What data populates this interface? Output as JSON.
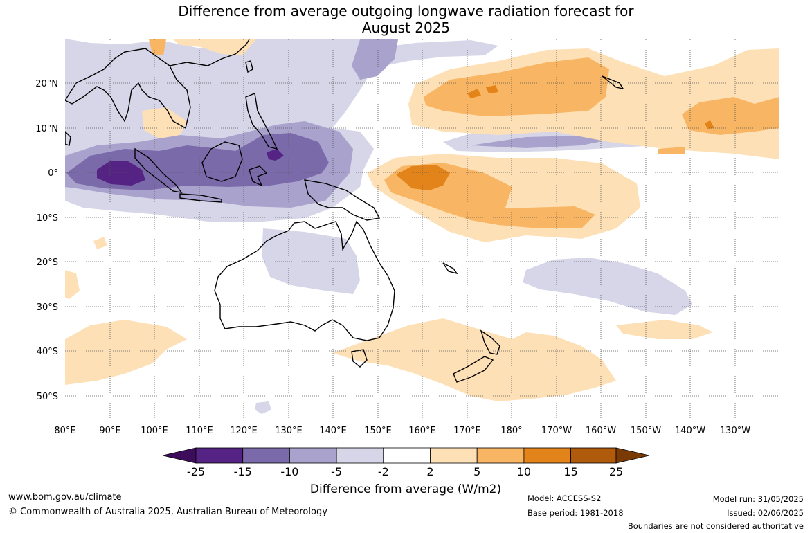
{
  "title_line1": "Difference from average outgoing longwave radiation forecast for",
  "title_line2": "August 2025",
  "map": {
    "lat_labels": [
      "20°N",
      "10°N",
      "0°",
      "10°S",
      "20°S",
      "30°S",
      "40°S",
      "50°S"
    ],
    "lon_labels": [
      "80°E",
      "90°E",
      "100°E",
      "110°E",
      "120°E",
      "130°E",
      "140°E",
      "150°E",
      "160°E",
      "170°E",
      "180°",
      "170°W",
      "160°W",
      "150°W",
      "140°W",
      "130°W"
    ],
    "colors": {
      "purple_dark": "#3d0d5c",
      "purple_1": "#552383",
      "purple_2": "#7a6aaa",
      "purple_3": "#a9a2cc",
      "purple_4": "#d6d6e8",
      "neutral": "#ffffff",
      "orange_1": "#fde0b6",
      "orange_2": "#f8b563",
      "orange_3": "#e3841a",
      "orange_4": "#b05a0c",
      "orange_dark": "#7a3a06"
    }
  },
  "colorbar": {
    "ticks": [
      "-25",
      "-15",
      "-10",
      "-5",
      "-2",
      "2",
      "5",
      "10",
      "15",
      "25"
    ],
    "label": "Difference from average (W/m2)"
  },
  "footer": {
    "website": "www.bom.gov.au/climate",
    "copyright": "© Commonwealth of Australia 2025, Australian Bureau of Meteorology",
    "model": "Model: ACCESS-S2",
    "base_period": "Base period: 1981-2018",
    "model_run": "Model run: 31/05/2025",
    "issued": "Issued: 02/06/2025",
    "disclaimer": "Boundaries are not considered authoritative"
  }
}
